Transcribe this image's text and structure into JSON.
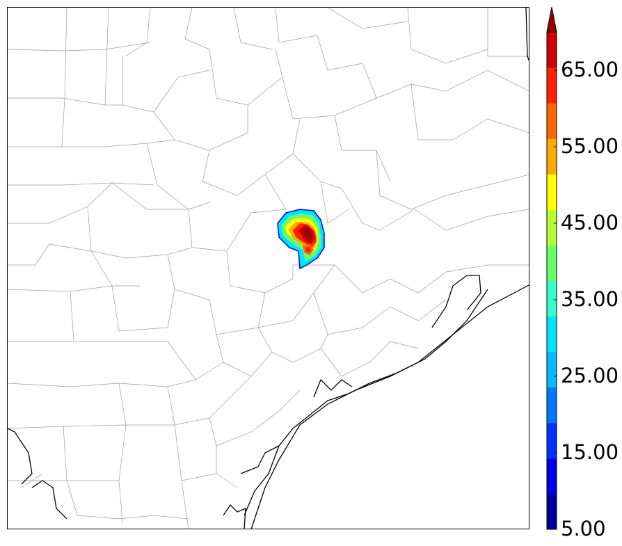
{
  "map": {
    "description_region": "",
    "colormap": [
      "#00009a",
      "#0000e6",
      "#0033ff",
      "#0077ff",
      "#00bbff",
      "#00e5ff",
      "#33ffcc",
      "#66ff66",
      "#b3ff33",
      "#ffff00",
      "#ffaa00",
      "#ff6600",
      "#ff2200",
      "#cc0000",
      "#990000"
    ]
  },
  "colorbar": {
    "tick_labels": [
      "65.00",
      "55.00",
      "45.00",
      "35.00",
      "25.00",
      "15.00",
      "5.00"
    ],
    "min": 5,
    "max": 70,
    "extend": "max"
  }
}
